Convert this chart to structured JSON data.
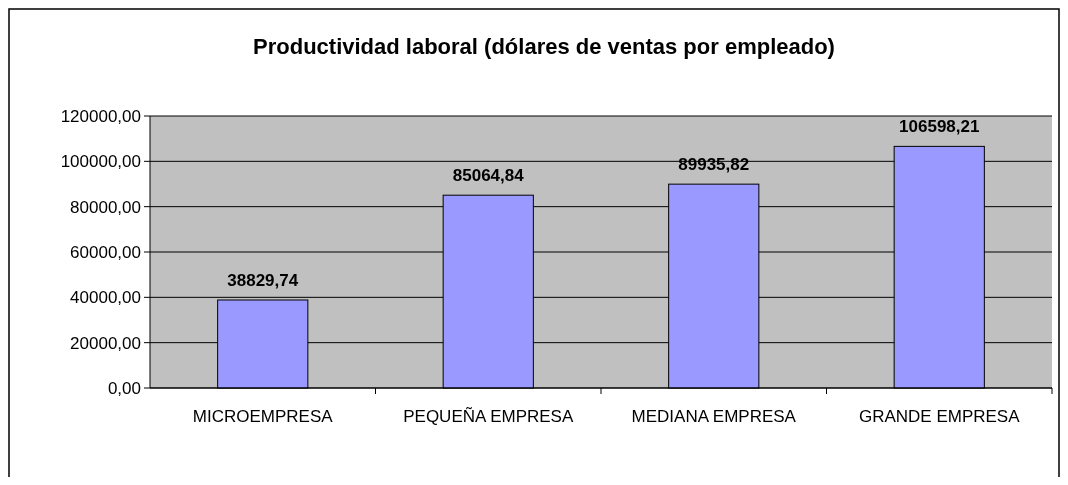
{
  "chart_data": {
    "type": "bar",
    "title": "Productividad laboral (dólares de ventas por empleado)",
    "categories": [
      "MICROEMPRESA",
      "PEQUEÑA EMPRESA",
      "MEDIANA EMPRESA",
      "GRANDE EMPRESA"
    ],
    "values": [
      38829.74,
      85064.84,
      89935.82,
      106598.21
    ],
    "value_labels": [
      "38829,74",
      "85064,84",
      "89935,82",
      "106598,21"
    ],
    "color": "#9999ff",
    "ylim": [
      0,
      120000
    ],
    "yticks": [
      {
        "value": 0,
        "label": "0,00"
      },
      {
        "value": 20000,
        "label": "20000,00"
      },
      {
        "value": 40000,
        "label": "40000,00"
      },
      {
        "value": 60000,
        "label": "60000,00"
      },
      {
        "value": 80000,
        "label": "80000,00"
      },
      {
        "value": 100000,
        "label": "100000,00"
      },
      {
        "value": 120000,
        "label": "120000,00"
      }
    ],
    "grid": "y"
  }
}
